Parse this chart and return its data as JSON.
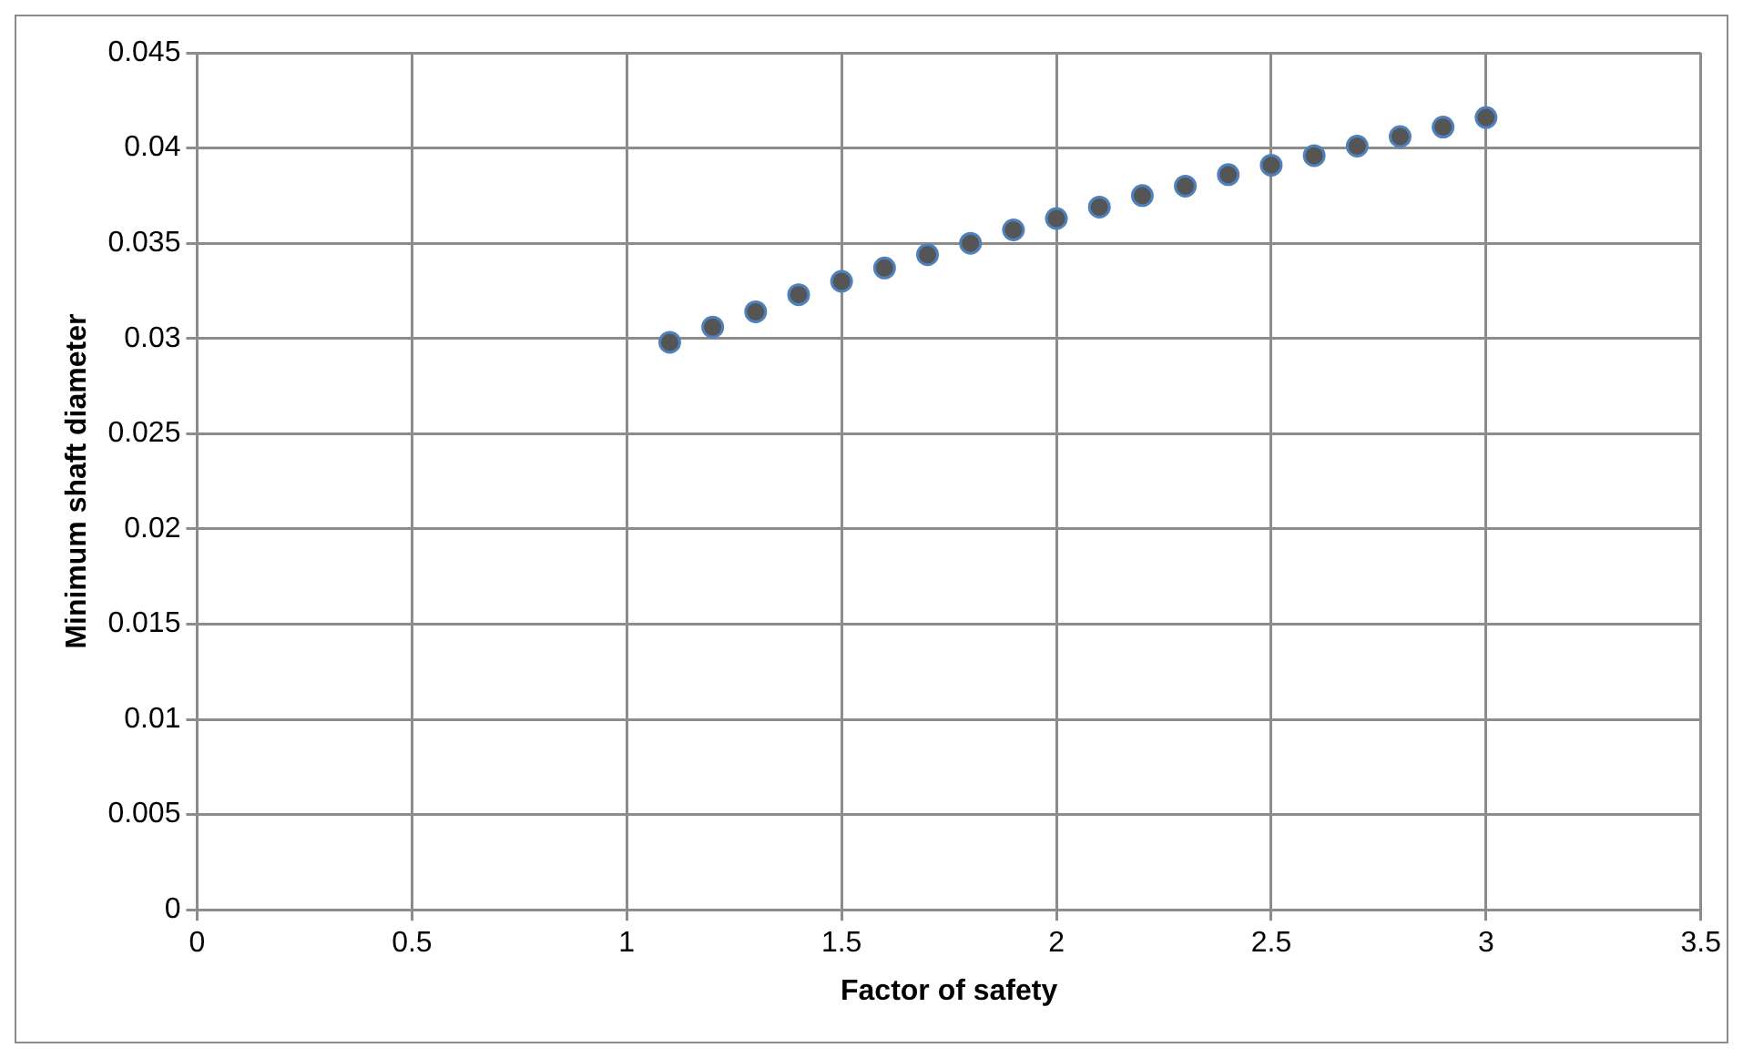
{
  "chart_data": {
    "type": "scatter",
    "xlabel": "Factor of safety",
    "ylabel": "Minimum shaft diameter",
    "x": [
      1.1,
      1.2,
      1.3,
      1.4,
      1.5,
      1.6,
      1.7,
      1.8,
      1.9,
      2.0,
      2.1,
      2.2,
      2.3,
      2.4,
      2.5,
      2.6,
      2.7,
      2.8,
      2.9,
      3.0
    ],
    "series": [
      {
        "color": "#4f81bd",
        "values": [
          0.0298,
          0.0306,
          0.0314,
          0.0323,
          0.033,
          0.0337,
          0.0344,
          0.035,
          0.0357,
          0.0363,
          0.0369,
          0.0375,
          0.038,
          0.0386,
          0.0391,
          0.0396,
          0.0401,
          0.0406,
          0.0411,
          0.0416
        ]
      }
    ],
    "xlim": [
      0,
      3.5
    ],
    "xticks": [
      0,
      0.5,
      1,
      1.5,
      2,
      2.5,
      3,
      3.5
    ],
    "ylim": [
      0,
      0.045
    ],
    "yticks": [
      0,
      0.005,
      0.01,
      0.015,
      0.02,
      0.025,
      0.03,
      0.035,
      0.04,
      0.045
    ],
    "grid": true,
    "legend": false,
    "marker": "circle"
  }
}
